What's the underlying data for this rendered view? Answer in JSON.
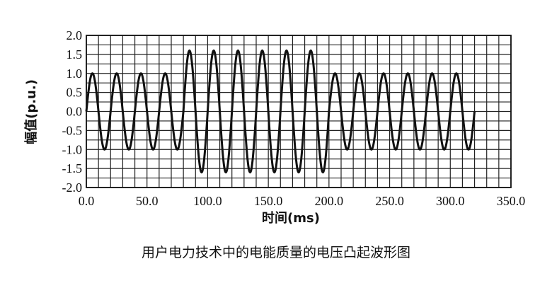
{
  "caption": "用户电力技术中的电能质量的电压凸起波形图",
  "chart_data": {
    "type": "line",
    "xlabel": "时间(ms)",
    "ylabel": "幅值(p.u.)",
    "xlim": [
      0,
      350
    ],
    "ylim": [
      -2,
      2
    ],
    "x_ticks": [
      "0.0",
      "50.0",
      "100.0",
      "150.0",
      "200.0",
      "250.0",
      "300.0",
      "350.0"
    ],
    "y_ticks": [
      "2.0",
      "1.5",
      "1.0",
      "0.5",
      "0.0",
      "-0.5",
      "-1.0",
      "-1.5",
      "-2.0"
    ],
    "grid": true,
    "series": [
      {
        "color": "#111111",
        "frequency_hz": 50,
        "x_end_ms": 320,
        "segments": [
          {
            "x_start": 0,
            "x_end": 80,
            "amplitude": 1.0
          },
          {
            "x_start": 80,
            "x_end": 200,
            "amplitude": 1.6
          },
          {
            "x_start": 200,
            "x_end": 320,
            "amplitude": 1.0
          }
        ]
      }
    ]
  }
}
